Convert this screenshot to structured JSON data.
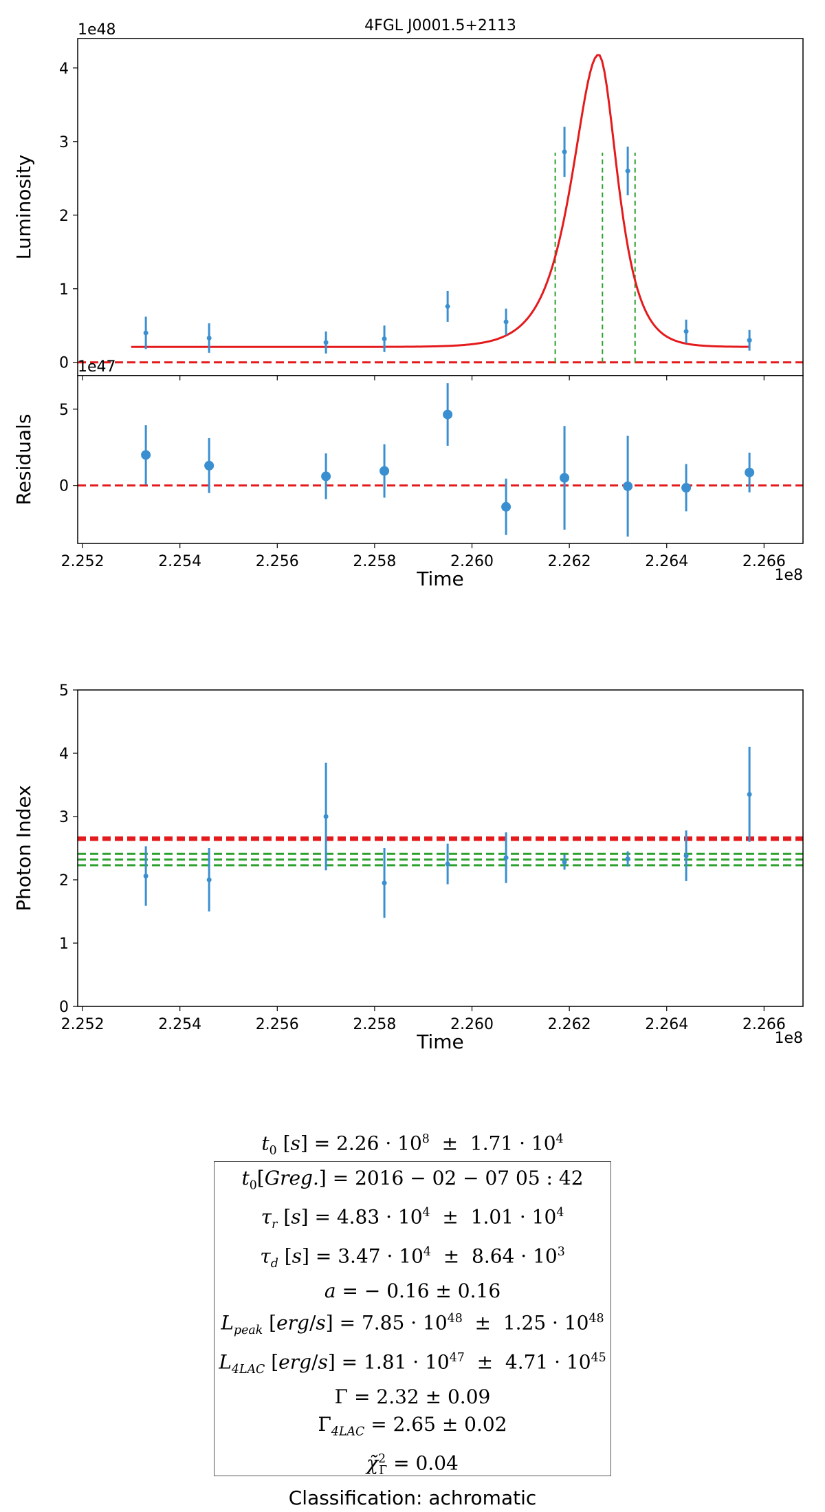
{
  "chart_data": [
    {
      "id": "luminosity",
      "type": "scatter",
      "title": "4FGL J0001.5+2113",
      "xlabel": "",
      "ylabel": "Luminosity",
      "y_scale_label": "1e48",
      "xlim": [
        2.2519,
        2.2668
      ],
      "ylim": [
        -0.18,
        4.4
      ],
      "yticks": [
        0,
        1,
        2,
        3,
        4
      ],
      "grid": false,
      "points": [
        {
          "x": 2.2533,
          "y": 0.4,
          "err": 0.22
        },
        {
          "x": 2.2546,
          "y": 0.33,
          "err": 0.2
        },
        {
          "x": 2.257,
          "y": 0.27,
          "err": 0.15
        },
        {
          "x": 2.2582,
          "y": 0.32,
          "err": 0.18
        },
        {
          "x": 2.2595,
          "y": 0.76,
          "err": 0.21
        },
        {
          "x": 2.2607,
          "y": 0.55,
          "err": 0.18
        },
        {
          "x": 2.2619,
          "y": 2.86,
          "err": 0.34
        },
        {
          "x": 2.2632,
          "y": 2.6,
          "err": 0.33
        },
        {
          "x": 2.2644,
          "y": 0.42,
          "err": 0.16
        },
        {
          "x": 2.2657,
          "y": 0.3,
          "err": 0.14
        }
      ],
      "model_curve": {
        "name": "fit",
        "color": "#e41a1c",
        "x0": 2.253,
        "x1": 2.2657,
        "t_peak": 2.2626,
        "baseline": 0.21,
        "peak": 4.18,
        "tau_rise": 0.000483,
        "tau_decay": 0.000347
      },
      "hlines": [
        {
          "y": 0,
          "color": "#e41a1c",
          "style": "dashed"
        }
      ],
      "vlines": [
        {
          "x": 2.26171,
          "y0": 0,
          "y1": 2.85,
          "color": "#2ca02c"
        },
        {
          "x": 2.26268,
          "y0": 0,
          "y1": 2.85,
          "color": "#2ca02c"
        },
        {
          "x": 2.26335,
          "y0": 0,
          "y1": 2.85,
          "color": "#2ca02c"
        }
      ]
    },
    {
      "id": "residuals",
      "type": "scatter",
      "xlabel": "Time",
      "ylabel": "Residuals",
      "y_scale_label": "1e47",
      "x_scale_label": "1e8",
      "xlim": [
        2.2519,
        2.2668
      ],
      "ylim": [
        -3.8,
        7.2
      ],
      "yticks": [
        0,
        5
      ],
      "xticks": [
        2.252,
        2.254,
        2.256,
        2.258,
        2.26,
        2.262,
        2.264,
        2.266
      ],
      "xtick_labels": [
        "2.252",
        "2.254",
        "2.256",
        "2.258",
        "2.260",
        "2.262",
        "2.264",
        "2.266"
      ],
      "points": [
        {
          "x": 2.2533,
          "y": 2.0,
          "err": 1.95
        },
        {
          "x": 2.2546,
          "y": 1.3,
          "err": 1.8
        },
        {
          "x": 2.257,
          "y": 0.6,
          "err": 1.5
        },
        {
          "x": 2.2582,
          "y": 0.95,
          "err": 1.75
        },
        {
          "x": 2.2595,
          "y": 4.65,
          "err": 2.05
        },
        {
          "x": 2.2607,
          "y": -1.4,
          "err": 1.85
        },
        {
          "x": 2.2619,
          "y": 0.5,
          "err": 3.4
        },
        {
          "x": 2.2632,
          "y": -0.05,
          "err": 3.3
        },
        {
          "x": 2.2644,
          "y": -0.15,
          "err": 1.55
        },
        {
          "x": 2.2657,
          "y": 0.85,
          "err": 1.3
        }
      ],
      "hlines": [
        {
          "y": 0,
          "color": "#e41a1c",
          "style": "dashed"
        }
      ]
    },
    {
      "id": "photon-index",
      "type": "scatter",
      "xlabel": "Time",
      "ylabel": "Photon Index",
      "x_scale_label": "1e8",
      "xlim": [
        2.2519,
        2.2668
      ],
      "ylim": [
        0,
        5
      ],
      "yticks": [
        0,
        1,
        2,
        3,
        4,
        5
      ],
      "xticks": [
        2.252,
        2.254,
        2.256,
        2.258,
        2.26,
        2.262,
        2.264,
        2.266
      ],
      "xtick_labels": [
        "2.252",
        "2.254",
        "2.256",
        "2.258",
        "2.260",
        "2.262",
        "2.264",
        "2.266"
      ],
      "points": [
        {
          "x": 2.2533,
          "y": 2.06,
          "err": 0.47
        },
        {
          "x": 2.2546,
          "y": 2.0,
          "err": 0.5
        },
        {
          "x": 2.257,
          "y": 3.0,
          "err": 0.85
        },
        {
          "x": 2.2582,
          "y": 1.95,
          "err": 0.55
        },
        {
          "x": 2.2595,
          "y": 2.25,
          "err": 0.32
        },
        {
          "x": 2.2607,
          "y": 2.35,
          "err": 0.4
        },
        {
          "x": 2.2619,
          "y": 2.28,
          "err": 0.12
        },
        {
          "x": 2.2632,
          "y": 2.33,
          "err": 0.12
        },
        {
          "x": 2.2644,
          "y": 2.38,
          "err": 0.4
        },
        {
          "x": 2.2657,
          "y": 3.35,
          "err": 0.75
        }
      ],
      "hlines": [
        {
          "y": 2.67,
          "color": "#e41a1c",
          "style": "dashed"
        },
        {
          "y": 2.65,
          "color": "#e41a1c",
          "style": "dashed"
        },
        {
          "y": 2.63,
          "color": "#e41a1c",
          "style": "dashed"
        },
        {
          "y": 2.41,
          "color": "#2ca02c",
          "style": "dashed"
        },
        {
          "y": 2.32,
          "color": "#2ca02c",
          "style": "dashed"
        },
        {
          "y": 2.23,
          "color": "#2ca02c",
          "style": "dashed"
        }
      ]
    }
  ],
  "colors": {
    "points": "#3a8fd0",
    "model": "#e41a1c",
    "markers": "#2ca02c"
  },
  "results": {
    "t0_value": "2.26 · 10",
    "t0_value_exp": "8",
    "t0_error": "1.71 · 10",
    "t0_error_exp": "4",
    "t0_greg": "2016 − 02 − 07 05 : 42",
    "tau_r_value": "4.83 · 10",
    "tau_r_value_exp": "4",
    "tau_r_error": "1.01 · 10",
    "tau_r_error_exp": "4",
    "tau_d_value": "3.47 · 10",
    "tau_d_value_exp": "4",
    "tau_d_error": "8.64 · 10",
    "tau_d_error_exp": "3",
    "a_value": "− 0.16 ±  0.16",
    "lpeak_value": "7.85 · 10",
    "lpeak_value_exp": "48",
    "lpeak_error": "1.25 · 10",
    "lpeak_error_exp": "48",
    "l4lac_value": "1.81 · 10",
    "l4lac_value_exp": "47",
    "l4lac_error": "4.71 · 10",
    "l4lac_error_exp": "45",
    "gamma": "2.32 ± 0.09",
    "gamma_4lac": "2.65 ± 0.02",
    "chi2": "0.04",
    "classification": "Classification: achromatic"
  }
}
